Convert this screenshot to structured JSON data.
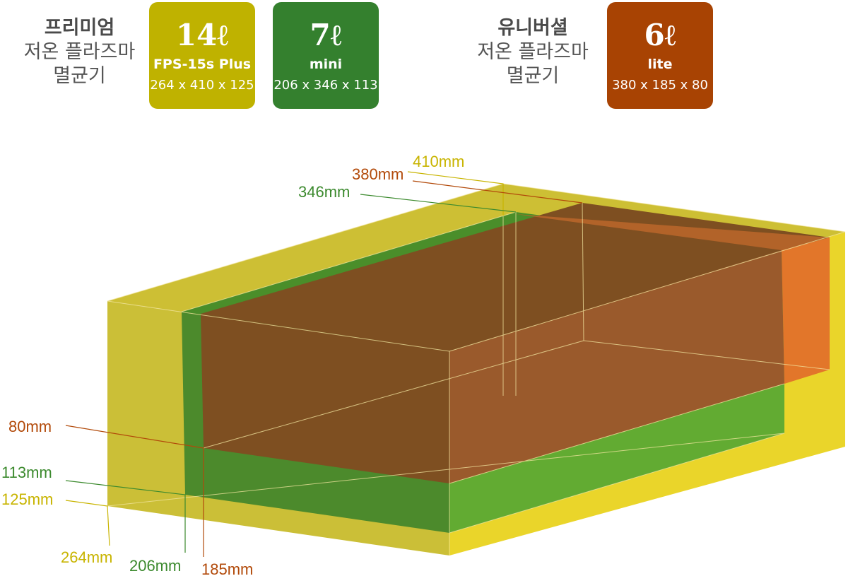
{
  "premium": {
    "title": "프리미엄",
    "line2": "저온 플라즈마",
    "line3": "멸균기"
  },
  "universal": {
    "title": "유니버셜",
    "line2": "저온 플라즈마",
    "line3": "멸균기"
  },
  "badges": [
    {
      "volume": "14ℓ",
      "model": "FPS-15s Plus",
      "dims": "264 x 410 x 125",
      "color": "#bfb200"
    },
    {
      "volume": "7ℓ",
      "model": "mini",
      "dims": "206 x 346 x 113",
      "color": "#34802e"
    },
    {
      "volume": "6ℓ",
      "model": "lite",
      "dims": "380 x 185 x 80",
      "color": "#a84303"
    }
  ],
  "labels": {
    "l14_depth": "410mm",
    "l14_height": "125mm",
    "l14_width": "264mm",
    "l7_depth": "346mm",
    "l7_height": "113mm",
    "l7_width": "206mm",
    "l6_depth": "380mm",
    "l6_height": "80mm",
    "l6_width": "185mm"
  },
  "colors": {
    "yellow": "#c8b400",
    "green": "#3c8a2e",
    "orange": "#b24a0a"
  }
}
